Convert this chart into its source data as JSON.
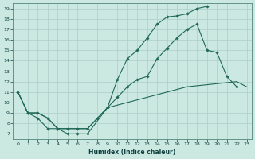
{
  "xlabel": "Humidex (Indice chaleur)",
  "xlim": [
    -0.5,
    23.5
  ],
  "ylim": [
    6.5,
    19.5
  ],
  "xticks": [
    0,
    1,
    2,
    3,
    4,
    5,
    6,
    7,
    8,
    9,
    10,
    11,
    12,
    13,
    14,
    15,
    16,
    17,
    18,
    19,
    20,
    21,
    22,
    23
  ],
  "yticks": [
    7,
    8,
    9,
    10,
    11,
    12,
    13,
    14,
    15,
    16,
    17,
    18,
    19
  ],
  "background_color": "#cce9e1",
  "grid_color": "#aacfc8",
  "line_color": "#206858",
  "line1_x": [
    0,
    1,
    2,
    3,
    4,
    5,
    6,
    7,
    9,
    10,
    11,
    12,
    13,
    14,
    15,
    16,
    17,
    18,
    19
  ],
  "line1_y": [
    11,
    9,
    8.5,
    7.5,
    7.5,
    7.0,
    7.0,
    7.0,
    9.5,
    12.2,
    14.2,
    15.0,
    16.2,
    17.5,
    18.2,
    18.3,
    18.5,
    19.0,
    19.2
  ],
  "line2_x": [
    0,
    1,
    2,
    3,
    4,
    5,
    6,
    7,
    8,
    9,
    10,
    11,
    12,
    13,
    14,
    15,
    16,
    17,
    18,
    19,
    20,
    21,
    22
  ],
  "line2_y": [
    11,
    9,
    9,
    8.5,
    7.5,
    7.5,
    7.5,
    7.5,
    8.5,
    9.5,
    10.5,
    11.5,
    12.2,
    12.5,
    14.2,
    15.2,
    16.2,
    17.0,
    17.5,
    15.0,
    14.8,
    12.5,
    11.5
  ],
  "line3_x": [
    0,
    1,
    2,
    3,
    4,
    5,
    6,
    7,
    8,
    9,
    10,
    11,
    12,
    13,
    14,
    15,
    16,
    17,
    18,
    19,
    20,
    21,
    22,
    23
  ],
  "line3_y": [
    11,
    9,
    9,
    8.5,
    7.5,
    7.5,
    7.5,
    7.5,
    8.5,
    9.5,
    9.75,
    10.0,
    10.25,
    10.5,
    10.75,
    11.0,
    11.25,
    11.5,
    11.6,
    11.7,
    11.8,
    11.9,
    12.0,
    11.5
  ]
}
